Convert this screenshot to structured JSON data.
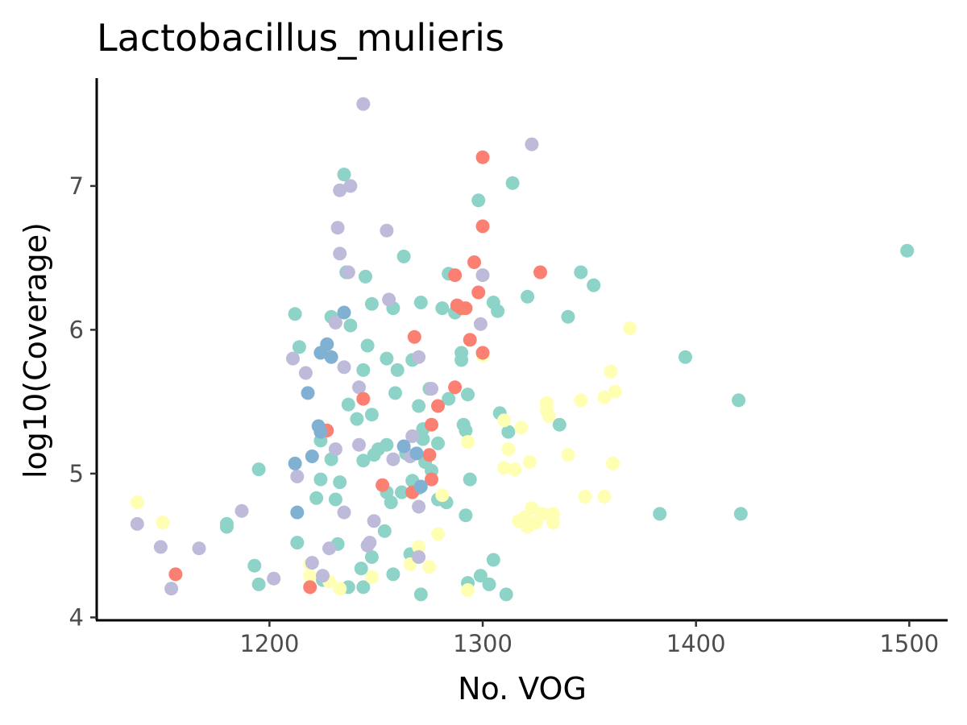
{
  "chart_data": {
    "type": "scatter",
    "title": "Lactobacillus_mulieris",
    "xlabel": "No. VOG",
    "ylabel": "log10(Coverage)",
    "xlim": [
      1119,
      1518
    ],
    "ylim": [
      3.98,
      7.75
    ],
    "xticks": [
      1200,
      1300,
      1400,
      1500
    ],
    "yticks": [
      4,
      5,
      6,
      7
    ],
    "grid": false,
    "legend": "none",
    "colors": {
      "teal": "#8dd3c7",
      "yellow": "#ffffb3",
      "lavender": "#bebada",
      "salmon": "#fb8072",
      "blue": "#80b1d3"
    },
    "groups": [
      {
        "color": "teal",
        "points": [
          [
            1212,
            6.11
          ],
          [
            1214,
            5.88
          ],
          [
            1229,
            6.09
          ],
          [
            1235,
            7.08
          ],
          [
            1236,
            6.4
          ],
          [
            1238,
            6.03
          ],
          [
            1245,
            6.37
          ],
          [
            1248,
            6.18
          ],
          [
            1246,
            5.89
          ],
          [
            1255,
            5.8
          ],
          [
            1258,
            6.15
          ],
          [
            1263,
            6.51
          ],
          [
            1271,
            6.19
          ],
          [
            1260,
            5.72
          ],
          [
            1267,
            5.79
          ],
          [
            1284,
            6.39
          ],
          [
            1281,
            6.15
          ],
          [
            1287,
            6.12
          ],
          [
            1290,
            5.84
          ],
          [
            1290,
            5.79
          ],
          [
            1298,
            6.9
          ],
          [
            1305,
            6.19
          ],
          [
            1307,
            6.13
          ],
          [
            1314,
            7.02
          ],
          [
            1321,
            6.23
          ],
          [
            1340,
            6.09
          ],
          [
            1346,
            6.4
          ],
          [
            1352,
            6.31
          ],
          [
            1395,
            5.81
          ],
          [
            1420,
            5.51
          ],
          [
            1499,
            6.55
          ],
          [
            1237,
            5.48
          ],
          [
            1241,
            5.38
          ],
          [
            1248,
            5.41
          ],
          [
            1244,
            5.72
          ],
          [
            1259,
            5.56
          ],
          [
            1270,
            5.47
          ],
          [
            1275,
            5.59
          ],
          [
            1284,
            5.52
          ],
          [
            1293,
            5.55
          ],
          [
            1291,
            5.34
          ],
          [
            1292,
            5.3
          ],
          [
            1308,
            5.42
          ],
          [
            1312,
            5.29
          ],
          [
            1336,
            5.34
          ],
          [
            1224,
            5.23
          ],
          [
            1229,
            5.1
          ],
          [
            1244,
            5.09
          ],
          [
            1249,
            5.13
          ],
          [
            1251,
            5.17
          ],
          [
            1255,
            5.2
          ],
          [
            1264,
            5.14
          ],
          [
            1272,
            5.24
          ],
          [
            1273,
            5.08
          ],
          [
            1272,
            5.31
          ],
          [
            1276,
            5.02
          ],
          [
            1279,
            5.21
          ],
          [
            1195,
            5.03
          ],
          [
            1224,
            4.96
          ],
          [
            1233,
            4.94
          ],
          [
            1231,
            4.82
          ],
          [
            1222,
            4.83
          ],
          [
            1255,
            4.87
          ],
          [
            1257,
            4.8
          ],
          [
            1262,
            4.87
          ],
          [
            1267,
            4.95
          ],
          [
            1270,
            4.9
          ],
          [
            1279,
            4.82
          ],
          [
            1283,
            4.8
          ],
          [
            1294,
            4.96
          ],
          [
            1292,
            4.71
          ],
          [
            1180,
            4.65
          ],
          [
            1180,
            4.63
          ],
          [
            1213,
            4.52
          ],
          [
            1232,
            4.51
          ],
          [
            1248,
            4.42
          ],
          [
            1254,
            4.6
          ],
          [
            1266,
            4.44
          ],
          [
            1193,
            4.36
          ],
          [
            1195,
            4.23
          ],
          [
            1225,
            4.26
          ],
          [
            1237,
            4.21
          ],
          [
            1244,
            4.21
          ],
          [
            1243,
            4.34
          ],
          [
            1258,
            4.3
          ],
          [
            1271,
            4.16
          ],
          [
            1293,
            4.24
          ],
          [
            1299,
            4.29
          ],
          [
            1303,
            4.23
          ],
          [
            1305,
            4.4
          ],
          [
            1311,
            4.16
          ],
          [
            1383,
            4.72
          ],
          [
            1421,
            4.72
          ]
        ]
      },
      {
        "color": "yellow",
        "points": [
          [
            1138,
            4.8
          ],
          [
            1150,
            4.66
          ],
          [
            1219,
            4.29
          ],
          [
            1219,
            4.37
          ],
          [
            1228,
            4.25
          ],
          [
            1233,
            4.2
          ],
          [
            1248,
            4.28
          ],
          [
            1266,
            4.37
          ],
          [
            1270,
            4.49
          ],
          [
            1275,
            4.35
          ],
          [
            1279,
            4.58
          ],
          [
            1281,
            4.85
          ],
          [
            1293,
            4.19
          ],
          [
            1293,
            5.22
          ],
          [
            1300,
            5.82
          ],
          [
            1310,
            5.04
          ],
          [
            1310,
            5.37
          ],
          [
            1312,
            5.17
          ],
          [
            1315,
            5.03
          ],
          [
            1317,
            4.67
          ],
          [
            1318,
            5.32
          ],
          [
            1320,
            4.7
          ],
          [
            1321,
            4.63
          ],
          [
            1322,
            5.08
          ],
          [
            1323,
            4.76
          ],
          [
            1325,
            4.66
          ],
          [
            1328,
            4.72
          ],
          [
            1330,
            5.49
          ],
          [
            1330,
            5.44
          ],
          [
            1331,
            5.4
          ],
          [
            1333,
            4.66
          ],
          [
            1333,
            4.72
          ],
          [
            1340,
            5.13
          ],
          [
            1346,
            5.51
          ],
          [
            1348,
            4.84
          ],
          [
            1357,
            4.84
          ],
          [
            1357,
            5.53
          ],
          [
            1360,
            5.71
          ],
          [
            1362,
            5.57
          ],
          [
            1361,
            5.07
          ],
          [
            1369,
            6.01
          ]
        ]
      },
      {
        "color": "lavender",
        "points": [
          [
            1138,
            4.65
          ],
          [
            1149,
            4.49
          ],
          [
            1154,
            4.2
          ],
          [
            1167,
            4.48
          ],
          [
            1187,
            4.74
          ],
          [
            1202,
            4.27
          ],
          [
            1211,
            5.8
          ],
          [
            1213,
            4.98
          ],
          [
            1217,
            5.7
          ],
          [
            1220,
            4.38
          ],
          [
            1225,
            4.29
          ],
          [
            1228,
            4.48
          ],
          [
            1231,
            5.17
          ],
          [
            1231,
            6.05
          ],
          [
            1232,
            6.71
          ],
          [
            1233,
            6.97
          ],
          [
            1233,
            6.53
          ],
          [
            1235,
            5.74
          ],
          [
            1235,
            4.73
          ],
          [
            1237,
            6.4
          ],
          [
            1238,
            7.0
          ],
          [
            1242,
            5.6
          ],
          [
            1242,
            5.2
          ],
          [
            1244,
            7.57
          ],
          [
            1246,
            4.5
          ],
          [
            1247,
            4.52
          ],
          [
            1249,
            4.67
          ],
          [
            1255,
            6.69
          ],
          [
            1256,
            6.21
          ],
          [
            1258,
            5.1
          ],
          [
            1266,
            5.12
          ],
          [
            1267,
            5.26
          ],
          [
            1270,
            5.81
          ],
          [
            1270,
            4.77
          ],
          [
            1270,
            4.42
          ],
          [
            1276,
            5.59
          ],
          [
            1299,
            6.04
          ],
          [
            1300,
            6.38
          ],
          [
            1323,
            7.29
          ]
        ]
      },
      {
        "color": "salmon",
        "points": [
          [
            1156,
            4.3
          ],
          [
            1219,
            4.21
          ],
          [
            1227,
            5.3
          ],
          [
            1244,
            5.52
          ],
          [
            1253,
            4.92
          ],
          [
            1268,
            5.95
          ],
          [
            1267,
            4.87
          ],
          [
            1275,
            5.13
          ],
          [
            1276,
            5.34
          ],
          [
            1276,
            4.96
          ],
          [
            1279,
            5.47
          ],
          [
            1287,
            6.38
          ],
          [
            1287,
            5.6
          ],
          [
            1288,
            6.17
          ],
          [
            1290,
            6.15
          ],
          [
            1292,
            6.15
          ],
          [
            1294,
            5.93
          ],
          [
            1296,
            6.47
          ],
          [
            1298,
            6.26
          ],
          [
            1300,
            7.2
          ],
          [
            1300,
            6.72
          ],
          [
            1300,
            5.84
          ],
          [
            1327,
            6.4
          ]
        ]
      },
      {
        "color": "blue",
        "points": [
          [
            1212,
            5.07
          ],
          [
            1213,
            4.73
          ],
          [
            1218,
            5.56
          ],
          [
            1220,
            5.12
          ],
          [
            1223,
            5.33
          ],
          [
            1224,
            5.29
          ],
          [
            1224,
            5.84
          ],
          [
            1227,
            5.9
          ],
          [
            1229,
            5.81
          ],
          [
            1235,
            6.12
          ],
          [
            1263,
            5.19
          ],
          [
            1269,
            5.14
          ],
          [
            1271,
            4.91
          ]
        ]
      }
    ]
  }
}
